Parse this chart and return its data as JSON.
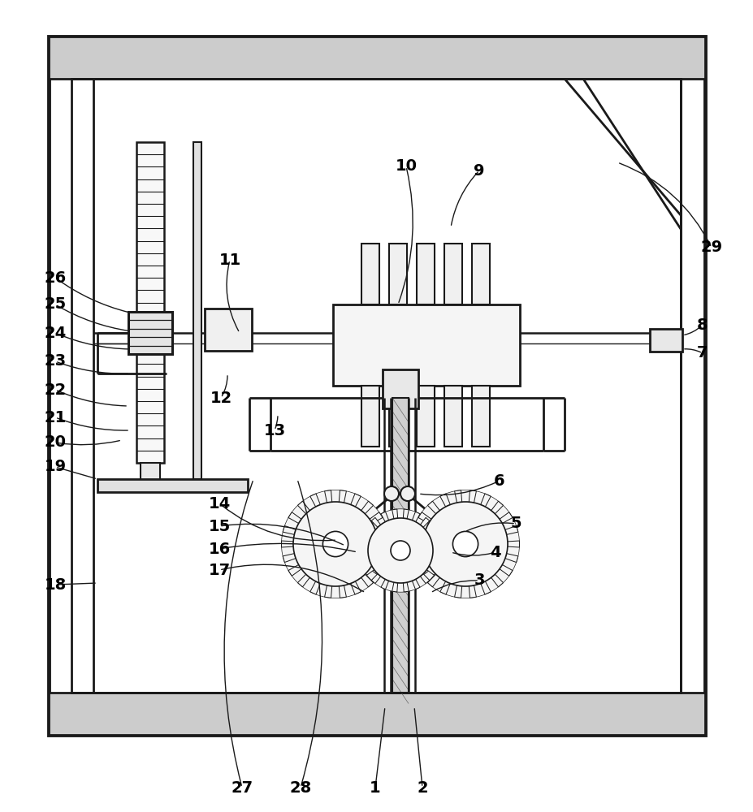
{
  "bg": "#ffffff",
  "lc": "#1a1a1a",
  "fig_w": 9.28,
  "fig_h": 10.0,
  "dpi": 100
}
